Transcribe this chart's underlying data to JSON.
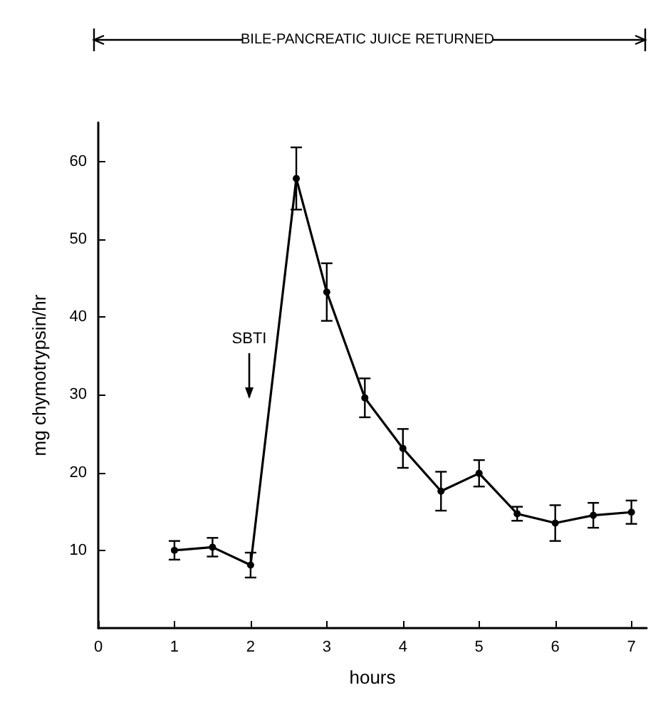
{
  "chart_data": {
    "type": "line",
    "xlabel": "hours",
    "ylabel": "mg chymotrypsin/hr",
    "x": [
      1,
      1.5,
      2,
      2.6,
      3,
      3.5,
      4,
      4.5,
      5,
      5.5,
      6,
      6.5,
      7
    ],
    "series": [
      {
        "color": "#000000",
        "values": [
          10,
          10.4,
          8.1,
          57.8,
          43.2,
          29.6,
          23.1,
          17.6,
          19.9,
          14.7,
          13.5,
          14.5,
          14.9
        ],
        "errors": [
          1.2,
          1.2,
          1.6,
          4,
          3.7,
          2.5,
          2.5,
          2.5,
          1.7,
          0.9,
          2.3,
          1.6,
          1.5
        ]
      }
    ],
    "xlim": [
      0,
      7.2
    ],
    "xticks": [
      0,
      1,
      2,
      3,
      4,
      5,
      6,
      7
    ],
    "ylim": [
      0,
      65
    ],
    "yticks": [
      10,
      20,
      30,
      40,
      50,
      60
    ],
    "marker": "circle",
    "line_style": "solid",
    "grid": false,
    "annotations": [
      "SBTI",
      "BILE-PANCREATIC JUICE RETURNED"
    ]
  }
}
